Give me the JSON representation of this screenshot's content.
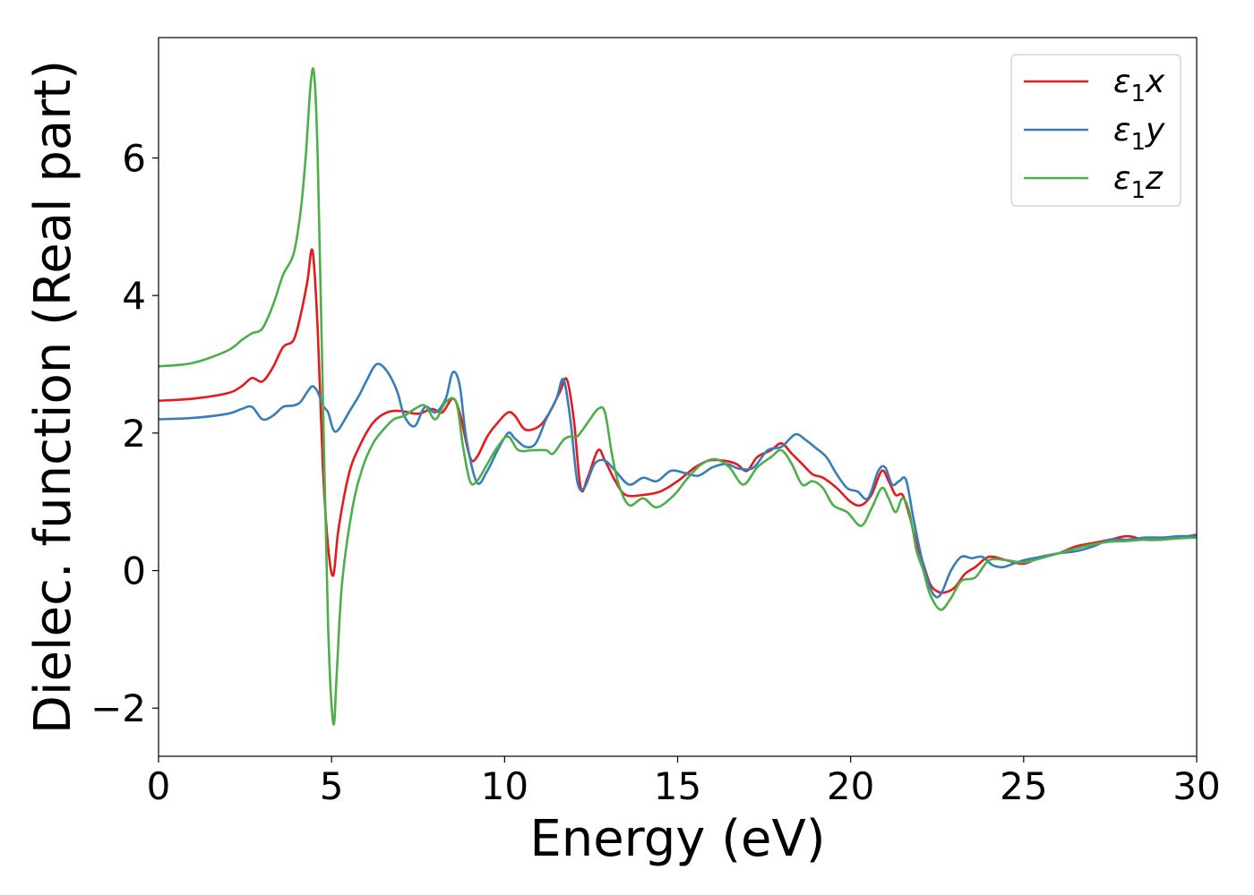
{
  "chart_data": {
    "type": "line",
    "title": "",
    "xlabel": "Energy (eV)",
    "ylabel": "Dielec. function (Real part)",
    "xlim": [
      0,
      30
    ],
    "ylim": [
      -2.7,
      7.75
    ],
    "xticks": [
      0,
      5,
      10,
      15,
      20,
      25,
      30
    ],
    "xtick_labels": [
      "0",
      "5",
      "10",
      "15",
      "20",
      "25",
      "30"
    ],
    "yticks": [
      -2,
      0,
      2,
      4,
      6
    ],
    "ytick_labels": [
      "−2",
      "0",
      "2",
      "4",
      "6"
    ],
    "grid": false,
    "legend_position": "top-right",
    "series": [
      {
        "name": "ε1x",
        "legend_base": "ε",
        "legend_sub": "1",
        "legend_var": "x",
        "color": "#e41a1c",
        "x": [
          0,
          1,
          2,
          2.4,
          2.7,
          3.0,
          3.3,
          3.6,
          3.9,
          4.1,
          4.3,
          4.45,
          4.6,
          4.75,
          4.9,
          5.05,
          5.2,
          5.5,
          5.8,
          6.2,
          6.6,
          7.0,
          7.5,
          7.9,
          8.2,
          8.5,
          8.7,
          9.0,
          9.2,
          9.5,
          9.8,
          10.1,
          10.3,
          10.6,
          11.0,
          11.3,
          11.6,
          11.8,
          12.0,
          12.2,
          12.4,
          12.7,
          12.9,
          13.2,
          13.5,
          14.0,
          14.5,
          15.0,
          15.5,
          15.9,
          16.3,
          16.7,
          17.0,
          17.3,
          17.7,
          18.0,
          18.3,
          18.6,
          18.9,
          19.2,
          19.6,
          20.0,
          20.3,
          20.6,
          20.9,
          21.1,
          21.3,
          21.5,
          21.7,
          21.9,
          22.1,
          22.3,
          22.5,
          22.7,
          23.0,
          23.3,
          23.6,
          24.0,
          24.5,
          25.0,
          25.5,
          26.0,
          26.5,
          27.0,
          27.5,
          28.0,
          28.5,
          29.0,
          29.5,
          30.0
        ],
        "y": [
          2.47,
          2.5,
          2.58,
          2.68,
          2.8,
          2.75,
          2.95,
          3.25,
          3.35,
          3.7,
          4.2,
          4.65,
          3.5,
          1.5,
          0.35,
          -0.07,
          0.6,
          1.4,
          1.8,
          2.15,
          2.3,
          2.32,
          2.28,
          2.35,
          2.3,
          2.5,
          2.3,
          1.65,
          1.65,
          1.95,
          2.15,
          2.3,
          2.25,
          2.05,
          2.1,
          2.3,
          2.6,
          2.78,
          2.2,
          1.2,
          1.35,
          1.75,
          1.6,
          1.3,
          1.1,
          1.1,
          1.15,
          1.3,
          1.5,
          1.6,
          1.6,
          1.55,
          1.45,
          1.65,
          1.75,
          1.85,
          1.7,
          1.55,
          1.4,
          1.35,
          1.2,
          1.0,
          0.95,
          1.1,
          1.45,
          1.3,
          1.1,
          1.1,
          0.8,
          0.4,
          0.1,
          -0.2,
          -0.3,
          -0.32,
          -0.25,
          -0.05,
          0.05,
          0.2,
          0.15,
          0.1,
          0.2,
          0.25,
          0.35,
          0.4,
          0.45,
          0.5,
          0.45,
          0.45,
          0.48,
          0.52
        ]
      },
      {
        "name": "ε1y",
        "legend_base": "ε",
        "legend_sub": "1",
        "legend_var": "y",
        "color": "#377eb8",
        "x": [
          0,
          1,
          2,
          2.4,
          2.7,
          3.0,
          3.3,
          3.6,
          3.9,
          4.1,
          4.3,
          4.45,
          4.6,
          4.75,
          4.9,
          5.05,
          5.2,
          5.5,
          5.8,
          6.0,
          6.3,
          6.6,
          6.9,
          7.1,
          7.4,
          7.7,
          8.0,
          8.3,
          8.5,
          8.7,
          8.9,
          9.2,
          9.5,
          9.8,
          10.1,
          10.3,
          10.6,
          10.9,
          11.2,
          11.5,
          11.7,
          11.9,
          12.1,
          12.3,
          12.6,
          12.9,
          13.2,
          13.6,
          14.0,
          14.4,
          14.8,
          15.2,
          15.6,
          16.0,
          16.4,
          16.8,
          17.2,
          17.6,
          18.0,
          18.4,
          18.7,
          19.0,
          19.3,
          19.6,
          19.9,
          20.2,
          20.5,
          20.8,
          21.0,
          21.2,
          21.4,
          21.6,
          21.8,
          22.0,
          22.2,
          22.4,
          22.6,
          22.9,
          23.2,
          23.5,
          23.8,
          24.1,
          24.4,
          24.7,
          25.0,
          25.5,
          26.0,
          26.5,
          27.0,
          27.5,
          28.0,
          28.5,
          29.0,
          29.5,
          30.0
        ],
        "y": [
          2.2,
          2.22,
          2.28,
          2.35,
          2.38,
          2.2,
          2.25,
          2.38,
          2.4,
          2.45,
          2.6,
          2.68,
          2.6,
          2.4,
          2.3,
          2.05,
          2.05,
          2.3,
          2.55,
          2.75,
          3.0,
          2.9,
          2.6,
          2.25,
          2.1,
          2.38,
          2.3,
          2.5,
          2.88,
          2.7,
          1.9,
          1.28,
          1.45,
          1.75,
          2.0,
          1.92,
          1.8,
          1.85,
          2.2,
          2.5,
          2.78,
          2.2,
          1.3,
          1.2,
          1.55,
          1.6,
          1.45,
          1.25,
          1.35,
          1.3,
          1.45,
          1.42,
          1.38,
          1.5,
          1.55,
          1.48,
          1.5,
          1.75,
          1.8,
          1.98,
          1.9,
          1.78,
          1.65,
          1.4,
          1.2,
          1.15,
          1.05,
          1.45,
          1.5,
          1.25,
          1.3,
          1.32,
          0.8,
          0.3,
          -0.1,
          -0.35,
          -0.35,
          0.0,
          0.2,
          0.18,
          0.2,
          0.08,
          0.05,
          0.1,
          0.15,
          0.2,
          0.25,
          0.28,
          0.35,
          0.45,
          0.45,
          0.48,
          0.48,
          0.5,
          0.5
        ]
      },
      {
        "name": "ε1z",
        "legend_base": "ε",
        "legend_sub": "1",
        "legend_var": "z",
        "color": "#4daf4a",
        "x": [
          0,
          1,
          2,
          2.4,
          2.7,
          3.0,
          3.3,
          3.6,
          3.9,
          4.1,
          4.25,
          4.4,
          4.5,
          4.6,
          4.75,
          4.9,
          5.05,
          5.15,
          5.3,
          5.6,
          5.9,
          6.2,
          6.5,
          6.8,
          7.1,
          7.4,
          7.7,
          8.0,
          8.3,
          8.6,
          8.8,
          9.0,
          9.2,
          9.5,
          9.8,
          10.1,
          10.4,
          10.8,
          11.2,
          11.4,
          11.7,
          11.9,
          12.1,
          12.4,
          12.7,
          12.9,
          13.1,
          13.3,
          13.6,
          14.0,
          14.4,
          14.9,
          15.3,
          15.7,
          16.1,
          16.5,
          16.9,
          17.3,
          17.7,
          18.0,
          18.3,
          18.6,
          18.9,
          19.2,
          19.5,
          19.9,
          20.3,
          20.6,
          20.9,
          21.1,
          21.3,
          21.5,
          21.7,
          21.9,
          22.1,
          22.3,
          22.6,
          22.9,
          23.2,
          23.6,
          24.0,
          24.5,
          25.0,
          25.5,
          26.0,
          26.5,
          27.0,
          27.5,
          28.0,
          28.5,
          29.0,
          29.5,
          30.0
        ],
        "y": [
          2.97,
          3.02,
          3.2,
          3.35,
          3.45,
          3.52,
          3.85,
          4.3,
          4.6,
          5.2,
          6.0,
          7.1,
          7.2,
          6.0,
          2.5,
          -0.8,
          -2.22,
          -1.5,
          -0.2,
          0.9,
          1.5,
          1.85,
          2.05,
          2.2,
          2.25,
          2.35,
          2.4,
          2.2,
          2.45,
          2.45,
          1.8,
          1.3,
          1.3,
          1.55,
          1.8,
          1.95,
          1.75,
          1.75,
          1.75,
          1.7,
          1.9,
          1.95,
          1.95,
          2.15,
          2.35,
          2.3,
          1.7,
          1.25,
          0.95,
          1.05,
          0.92,
          1.1,
          1.35,
          1.55,
          1.62,
          1.5,
          1.25,
          1.5,
          1.65,
          1.75,
          1.55,
          1.25,
          1.3,
          1.2,
          0.95,
          0.85,
          0.65,
          0.9,
          1.2,
          1.05,
          0.85,
          1.05,
          0.85,
          0.3,
          0.0,
          -0.35,
          -0.57,
          -0.4,
          -0.15,
          -0.1,
          0.15,
          0.15,
          0.12,
          0.18,
          0.25,
          0.32,
          0.38,
          0.42,
          0.43,
          0.45,
          0.45,
          0.47,
          0.48
        ]
      }
    ]
  }
}
